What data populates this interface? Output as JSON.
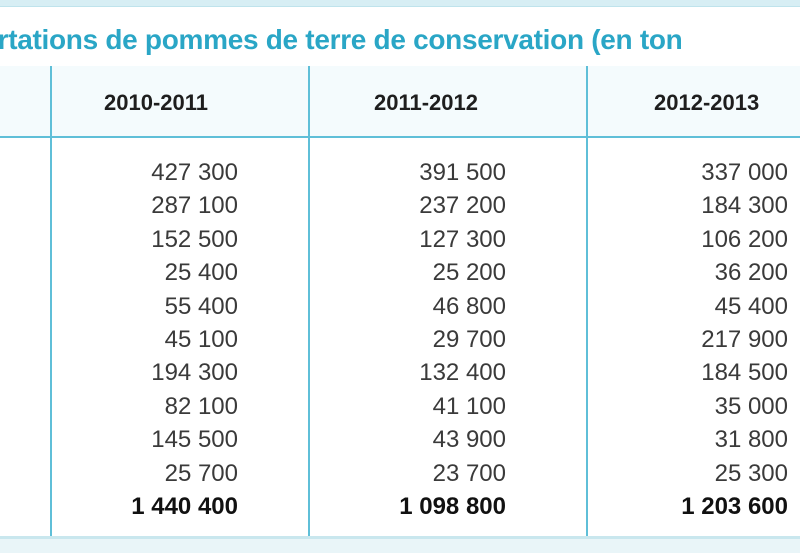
{
  "title": "portations de pommes de terre de conservation (en ton",
  "columns": [
    {
      "header": "2010-2011",
      "values": [
        "427 300",
        "287 100",
        "152 500",
        "25 400",
        "55 400",
        "45 100",
        "194 300",
        "82 100",
        "145 500",
        "25 700"
      ],
      "total": "1 440 400"
    },
    {
      "header": "2011-2012",
      "values": [
        "391 500",
        "237 200",
        "127 300",
        "25 200",
        "46 800",
        "29 700",
        "132 400",
        "41 100",
        "43 900",
        "23 700"
      ],
      "total": "1 098 800"
    },
    {
      "header": "2012-2013",
      "values": [
        "337 000",
        "184 300",
        "106 200",
        "36 200",
        "45 400",
        "217 900",
        "184 500",
        "35 000",
        "31 800",
        "25 300"
      ],
      "total": "1 203 600"
    }
  ],
  "colors": {
    "title": "#2aa6c6",
    "rules": "#5fbfd8"
  }
}
